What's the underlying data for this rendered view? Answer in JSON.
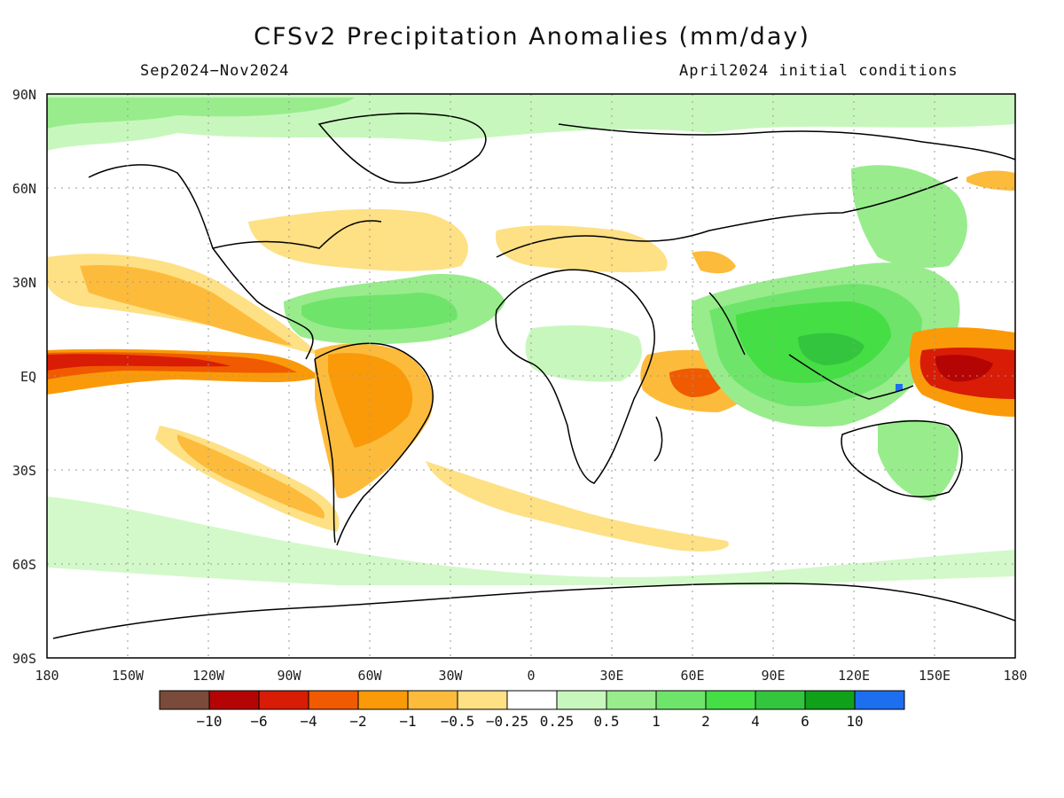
{
  "title": "CFSv2 Precipitation Anomalies (mm/day)",
  "period": "Sep2024−Nov2024",
  "init": "April2024 initial conditions",
  "lat_labels": [
    "90N",
    "60N",
    "30N",
    "EQ",
    "30S",
    "60S",
    "90S"
  ],
  "lon_labels": [
    "180",
    "150W",
    "120W",
    "90W",
    "60W",
    "30W",
    "0",
    "30E",
    "60E",
    "90E",
    "120E",
    "150E",
    "180"
  ],
  "colorbar": {
    "colors": [
      "#7a4a3a",
      "#b50404",
      "#d81c06",
      "#f05a00",
      "#fa9a08",
      "#fdbb3c",
      "#fee085",
      "#ffffff",
      "#c8f7bd",
      "#98ec8c",
      "#6fe46a",
      "#46de45",
      "#34c53e",
      "#0fa11a",
      "#1e6ef0"
    ],
    "tick_labels": [
      "−10",
      "−6",
      "−4",
      "−2",
      "−1",
      "−0.5",
      "−0.25",
      "0.25",
      "0.5",
      "1",
      "2",
      "4",
      "6",
      "10"
    ]
  }
}
